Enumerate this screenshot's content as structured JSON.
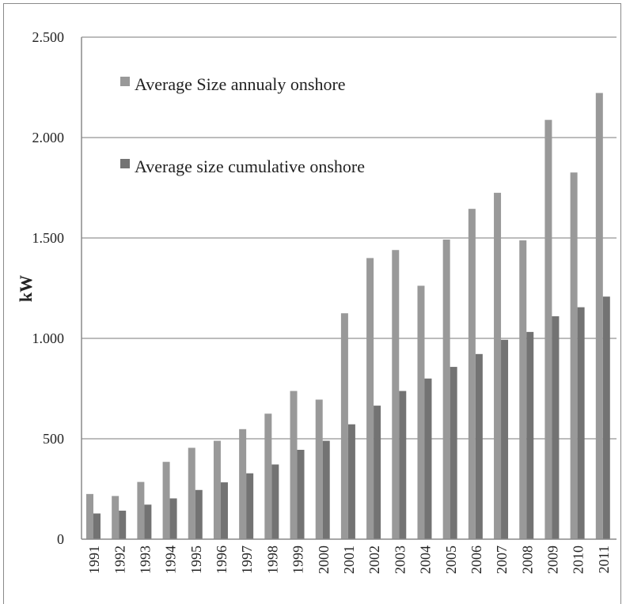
{
  "chart_data": {
    "type": "bar",
    "title": "",
    "xlabel": "",
    "ylabel": "kW",
    "ylim": [
      0,
      2500
    ],
    "yticks": [
      0,
      500,
      1000,
      1500,
      2000,
      2500
    ],
    "ytick_labels": [
      "0",
      "500",
      "1.000",
      "1.500",
      "2.000",
      "2.500"
    ],
    "grid": "horizontal",
    "legend_position": "top-left",
    "categories": [
      "1991",
      "1992",
      "1993",
      "1994",
      "1995",
      "1996",
      "1997",
      "1998",
      "1999",
      "2000",
      "2001",
      "2002",
      "2003",
      "2004",
      "2005",
      "2006",
      "2007",
      "2008",
      "2009",
      "2010",
      "2011"
    ],
    "series": [
      {
        "name": "Average Size annualy onshore",
        "color": "#999999",
        "values": [
          225,
          215,
          285,
          385,
          455,
          490,
          548,
          625,
          738,
          695,
          1125,
          1400,
          1440,
          1262,
          1492,
          1645,
          1725,
          1488,
          2088,
          1826,
          2222
        ]
      },
      {
        "name": "Average size cumulative onshore",
        "color": "#737373",
        "values": [
          128,
          142,
          172,
          203,
          245,
          283,
          328,
          372,
          445,
          490,
          572,
          665,
          738,
          800,
          858,
          922,
          993,
          1032,
          1110,
          1155,
          1208
        ]
      }
    ]
  }
}
